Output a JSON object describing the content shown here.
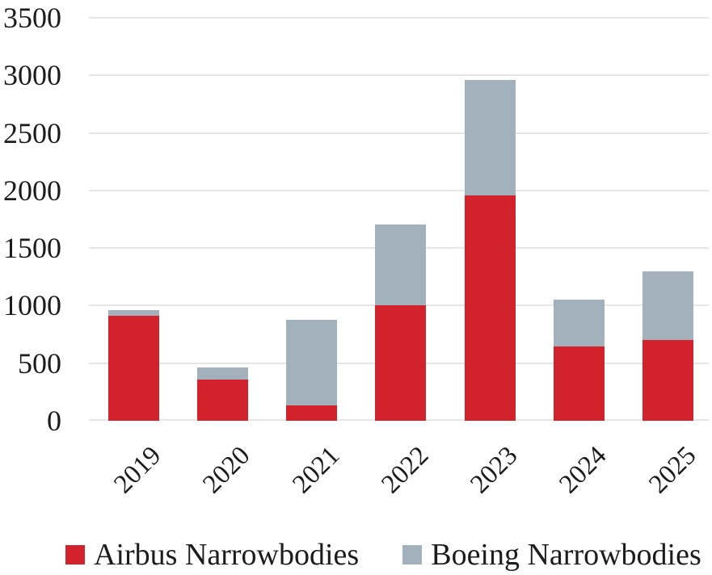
{
  "chart_data": {
    "type": "bar",
    "stacked": true,
    "title": "",
    "xlabel": "",
    "ylabel": "",
    "categories": [
      "2019",
      "2020",
      "2021",
      "2022",
      "2023",
      "2024",
      "2025"
    ],
    "series": [
      {
        "name": "Airbus Narrowbodies",
        "color": "#d2232c",
        "values": [
          910,
          355,
          130,
          1005,
          1960,
          645,
          700
        ]
      },
      {
        "name": "Boeing Narrowbodies",
        "color": "#a2b1bc",
        "values": [
          50,
          110,
          745,
          700,
          1000,
          410,
          595
        ]
      }
    ],
    "totals": [
      960,
      465,
      875,
      1705,
      2960,
      1055,
      1295
    ],
    "ylim": [
      0,
      3500
    ],
    "ytick_step": 500,
    "yticks": [
      "3500",
      "3000",
      "2500",
      "2000",
      "1500",
      "1000",
      "500",
      "0"
    ],
    "grid": true,
    "gridline_color": "#e6e6e6",
    "text_color": "#1c1c1c",
    "background_color": "#ffffff",
    "legend_position": "bottom"
  }
}
